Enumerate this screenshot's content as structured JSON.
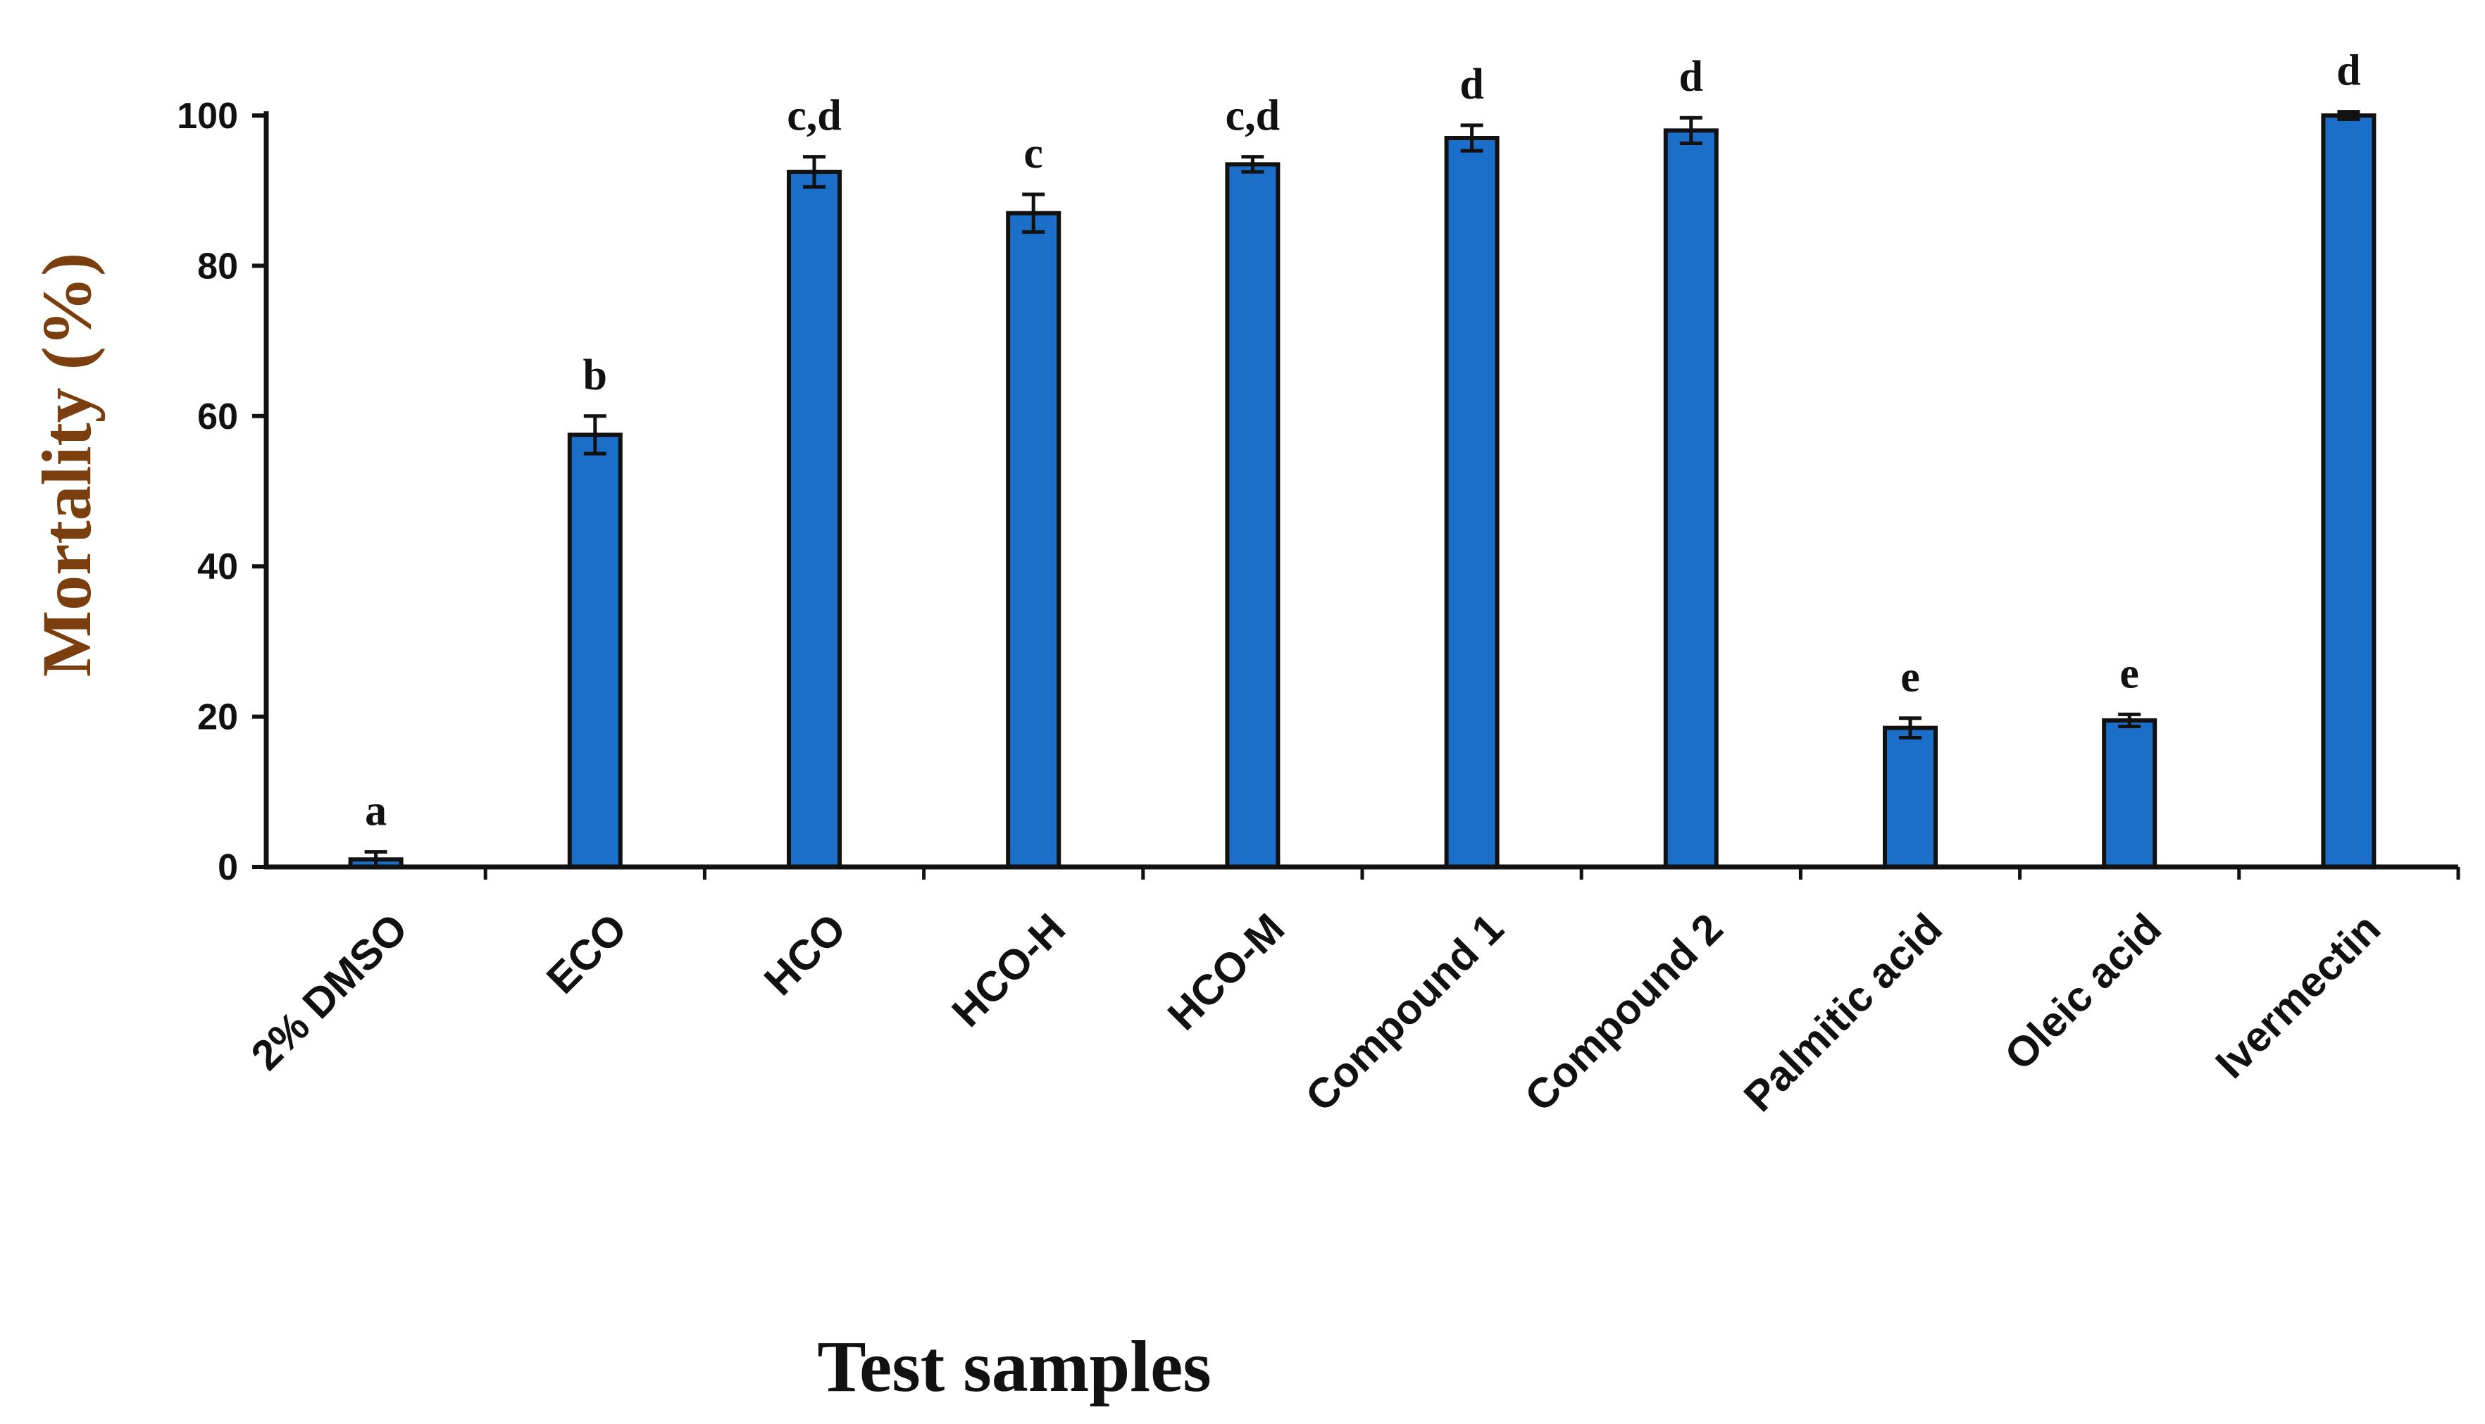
{
  "chart_data": {
    "type": "bar",
    "title": "",
    "xlabel": "Test samples",
    "ylabel": "Mortality (%)",
    "ylim": [
      0,
      100
    ],
    "yticks": [
      0,
      20,
      40,
      60,
      80,
      100
    ],
    "ytick_labels": [
      "0",
      "20",
      "40",
      "60",
      "80",
      "100"
    ],
    "grid": false,
    "legend": "none",
    "categories": [
      "2% DMSO",
      "ECO",
      "HCO",
      "HCO-H",
      "HCO-M",
      "Compound 1",
      "Compound 2",
      "Palmitic acid",
      "Oleic acid",
      "Ivermectin"
    ],
    "values": [
      1,
      57.5,
      92.5,
      87,
      93.5,
      97,
      98,
      18.5,
      19.5,
      100
    ],
    "errors": [
      1,
      2.5,
      2,
      2.5,
      1,
      1.7,
      1.7,
      1.3,
      0.8,
      0.5
    ],
    "significance": [
      "a",
      "b",
      "c,d",
      "c",
      "c,d",
      "d",
      "d",
      "e",
      "e",
      "d"
    ],
    "colors": {
      "bar": "#1b6fc8",
      "bar_edge": "#111111",
      "axis": "#111111",
      "text": "#111111",
      "ylabel": "#7a3e0f"
    }
  }
}
